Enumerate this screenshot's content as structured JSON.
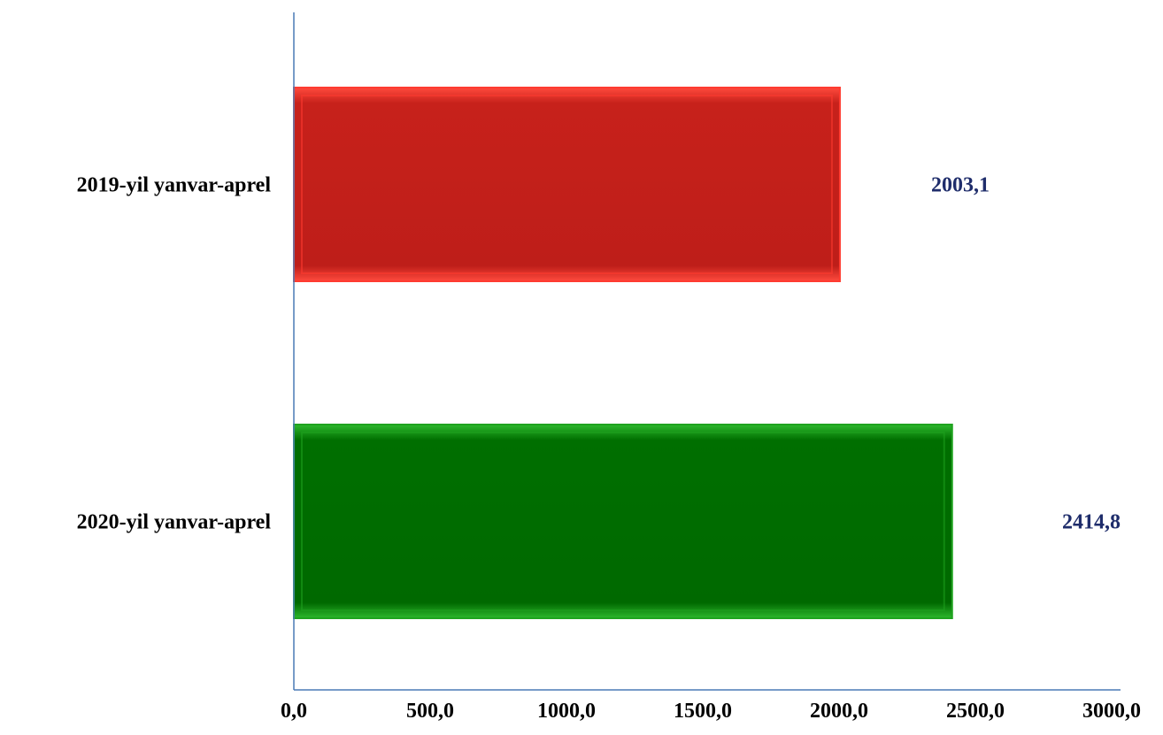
{
  "chart_data": {
    "type": "bar",
    "orientation": "horizontal",
    "title": "",
    "xlabel": "",
    "ylabel": "",
    "xlim": [
      0,
      3000
    ],
    "x_ticks": [
      "0,0",
      "500,0",
      "1000,0",
      "1500,0",
      "2000,0",
      "2500,0",
      "3000,0"
    ],
    "grid": false,
    "legend": "none",
    "categories": [
      "2019-yil yanvar-aprel",
      "2020-yil yanvar-aprel"
    ],
    "values": [
      2003.1,
      2414.8
    ],
    "value_labels": [
      "2003,1",
      "2414,8"
    ],
    "colors": {
      "bar_2019": "#c01f1a",
      "bar_2019_edge": "#ff3b30",
      "bar_2020": "#006b00",
      "bar_2020_edge": "#1fa31f",
      "axis": "#4a7ab5",
      "value_label": "#1f2d6b"
    }
  }
}
